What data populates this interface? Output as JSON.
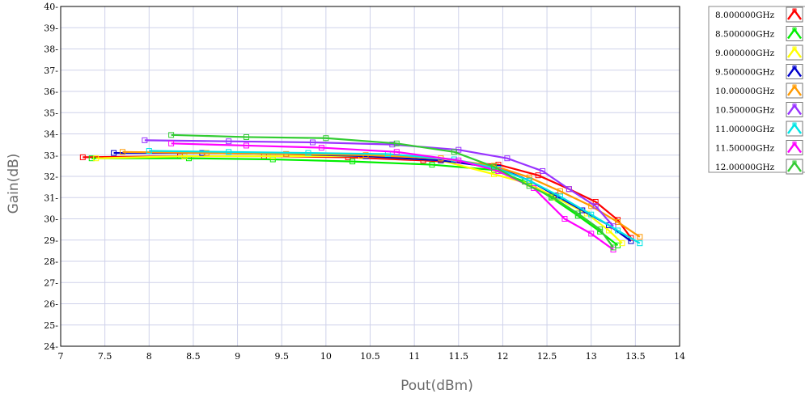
{
  "chart_data": {
    "type": "line",
    "title": "",
    "xlabel": "Pout(dBm)",
    "ylabel": "Gain(dB)",
    "xlim": [
      7,
      14
    ],
    "ylim": [
      24,
      40
    ],
    "xticks": [
      7,
      7.5,
      8,
      8.5,
      9,
      9.5,
      10,
      10.5,
      11,
      11.5,
      12,
      12.5,
      13,
      13.5,
      14
    ],
    "xtick_labels": [
      "7",
      "7.5",
      "8",
      "8.5",
      "9",
      "9.5",
      "10",
      "10.5",
      "11",
      "11.5",
      "12",
      "12.5",
      "13",
      "13.5",
      "14"
    ],
    "yticks": [
      24,
      25,
      26,
      27,
      28,
      29,
      30,
      31,
      32,
      33,
      34,
      35,
      36,
      37,
      38,
      39,
      40
    ],
    "ytick_labels": [
      "24-",
      "25-",
      "26-",
      "27-",
      "28-",
      "29-",
      "30-",
      "31-",
      "32-",
      "33-",
      "34-",
      "35-",
      "36-",
      "37-",
      "38-",
      "39-",
      "40-"
    ],
    "grid": true,
    "legend_position": "right",
    "series": [
      {
        "name": "8.000000GHz",
        "color": "#ff0000",
        "marker": "square",
        "x": [
          7.25,
          8.35,
          9.3,
          10.25,
          11.1,
          11.95,
          12.4,
          12.75,
          13.05,
          13.3,
          13.45
        ],
        "y": [
          32.9,
          32.95,
          32.95,
          32.9,
          32.75,
          32.55,
          32.05,
          31.4,
          30.8,
          29.95,
          29.1
        ]
      },
      {
        "name": "8.500000GHz",
        "color": "#00ee00",
        "marker": "square",
        "x": [
          7.35,
          8.45,
          9.4,
          10.3,
          11.2,
          11.9,
          12.25,
          12.55,
          12.85,
          13.1,
          13.3
        ],
        "y": [
          32.85,
          32.85,
          32.8,
          32.7,
          32.55,
          32.3,
          31.75,
          31.0,
          30.15,
          29.4,
          28.75
        ]
      },
      {
        "name": "9.000000GHz",
        "color": "#ffff00",
        "marker": "square",
        "x": [
          7.4,
          8.4,
          9.4,
          10.4,
          11.3,
          11.9,
          12.3,
          12.6,
          12.95,
          13.2,
          13.35
        ],
        "y": [
          32.85,
          32.95,
          32.95,
          32.95,
          32.75,
          32.1,
          31.65,
          31.0,
          30.25,
          29.45,
          28.85
        ]
      },
      {
        "name": "9.500000GHz",
        "color": "#0000cc",
        "marker": "square",
        "x": [
          7.6,
          8.6,
          9.55,
          10.45,
          11.3,
          11.95,
          12.3,
          12.6,
          12.9,
          13.2,
          13.45
        ],
        "y": [
          33.1,
          33.1,
          33.05,
          32.95,
          32.75,
          32.4,
          31.8,
          31.1,
          30.4,
          29.7,
          28.95
        ]
      },
      {
        "name": "10.00000GHz",
        "color": "#ff9900",
        "marker": "square",
        "x": [
          7.7,
          8.65,
          9.55,
          10.45,
          11.3,
          11.9,
          12.3,
          12.65,
          13.0,
          13.3,
          13.55
        ],
        "y": [
          33.15,
          33.1,
          33.05,
          33.0,
          32.85,
          32.5,
          31.95,
          31.3,
          30.6,
          29.85,
          29.15
        ]
      },
      {
        "name": "10.50000GHz",
        "color": "#9933ff",
        "marker": "square",
        "x": [
          7.95,
          8.9,
          9.85,
          10.75,
          11.5,
          12.05,
          12.45,
          12.75,
          13.05,
          13.25
        ],
        "y": [
          33.7,
          33.65,
          33.6,
          33.5,
          33.25,
          32.85,
          32.25,
          31.4,
          30.6,
          29.65
        ]
      },
      {
        "name": "11.00000GHz",
        "color": "#00e5e5",
        "marker": "square",
        "x": [
          8.0,
          8.9,
          9.8,
          10.7,
          11.45,
          11.95,
          12.3,
          12.65,
          13.0,
          13.3,
          13.55
        ],
        "y": [
          33.2,
          33.15,
          33.1,
          33.05,
          32.8,
          32.35,
          31.8,
          31.05,
          30.2,
          29.45,
          28.85
        ]
      },
      {
        "name": "11.50000GHz",
        "color": "#ff00ff",
        "marker": "square",
        "x": [
          8.25,
          9.1,
          9.95,
          10.8,
          11.5,
          11.95,
          12.35,
          12.7,
          13.0,
          13.25
        ],
        "y": [
          33.55,
          33.45,
          33.35,
          33.15,
          32.75,
          32.25,
          31.45,
          30.0,
          29.3,
          28.55
        ]
      },
      {
        "name": "12.00000GHz",
        "color": "#33cc33",
        "marker": "square",
        "x": [
          8.25,
          9.1,
          10.0,
          10.8,
          11.45,
          11.9,
          12.3,
          12.55,
          12.85,
          13.1,
          13.25
        ],
        "y": [
          33.95,
          33.85,
          33.8,
          33.55,
          33.15,
          32.45,
          31.55,
          31.05,
          30.25,
          29.5,
          28.65
        ]
      }
    ]
  }
}
